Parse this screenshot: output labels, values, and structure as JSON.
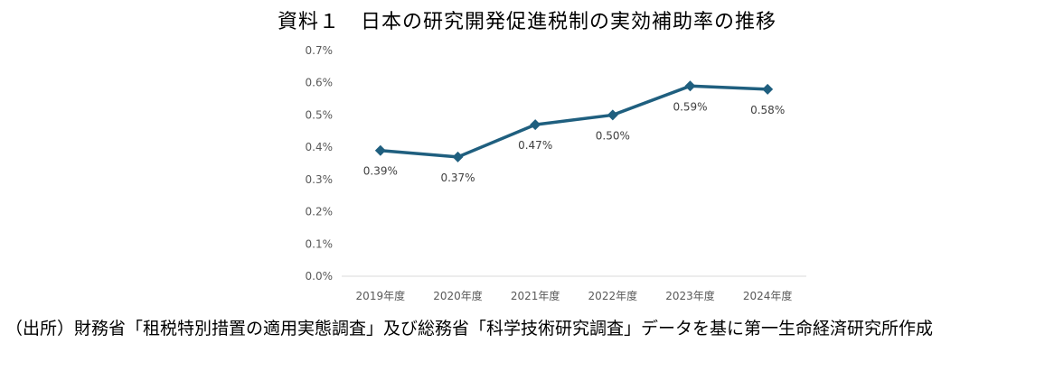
{
  "title": "資料１　日本の研究開発促進税制の実効補助率の推移",
  "source": "（出所）財務省「租税特別措置の適用実態調査」及び総務省「科学技術研究調査」データを基に第一生命経済研究所作成",
  "chart_data": {
    "type": "line",
    "title": "資料１　日本の研究開発促進税制の実効補助率の推移",
    "xlabel": "",
    "ylabel": "",
    "categories": [
      "2019年度",
      "2020年度",
      "2021年度",
      "2022年度",
      "2023年度",
      "2024年度"
    ],
    "values": [
      0.39,
      0.37,
      0.47,
      0.5,
      0.59,
      0.58
    ],
    "data_labels": [
      "0.39%",
      "0.37%",
      "0.47%",
      "0.50%",
      "0.59%",
      "0.58%"
    ],
    "y_ticks": [
      "0.0%",
      "0.1%",
      "0.2%",
      "0.3%",
      "0.4%",
      "0.5%",
      "0.6%",
      "0.7%"
    ],
    "ylim": [
      0,
      0.7
    ],
    "grid": false,
    "legend": "none",
    "marker": "diamond",
    "line_color": "#1f5f7f"
  }
}
